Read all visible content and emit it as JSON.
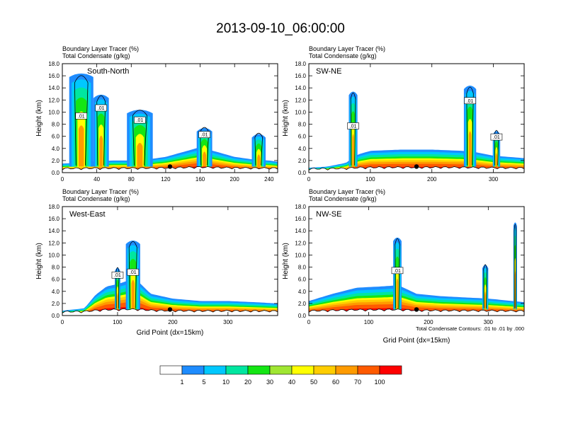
{
  "figure": {
    "title": "2013-09-10_06:00:00",
    "colorbar": {
      "ticks": [
        "1",
        "5",
        "10",
        "20",
        "30",
        "40",
        "50",
        "60",
        "70",
        "100"
      ],
      "colors": [
        "#ffffff",
        "#1e8cff",
        "#00c8ff",
        "#00e6a0",
        "#14e614",
        "#a0e632",
        "#ffff00",
        "#ffcd00",
        "#ff9b00",
        "#ff5a00",
        "#ff0000"
      ]
    }
  },
  "chart_data": [
    {
      "type": "heatmap",
      "panel": "South-North",
      "title_line1": "Boundary Layer Tracer   (%)",
      "title_line2": "Total Condensate   (g/kg)",
      "ylabel": "Height (km)",
      "xlabel": "",
      "xlim": [
        0,
        250
      ],
      "ylim": [
        0,
        18
      ],
      "xticks": [
        "0",
        "40",
        "80",
        "120",
        "160",
        "200",
        "240"
      ],
      "yticks": [
        "0.0",
        "2.0",
        "4.0",
        "6.0",
        "8.0",
        "10.0",
        "12.0",
        "14.0",
        "16.0",
        "18.0"
      ],
      "contour_labels": [
        ".01",
        ".01",
        ".01",
        ".01"
      ],
      "boundary_layer_top_km": [
        [
          0,
          1.5
        ],
        [
          20,
          1.6
        ],
        [
          40,
          1.9
        ],
        [
          60,
          2.0
        ],
        [
          80,
          2.0
        ],
        [
          100,
          2.2
        ],
        [
          120,
          2.6
        ],
        [
          140,
          3.4
        ],
        [
          160,
          4.2
        ],
        [
          180,
          3.4
        ],
        [
          200,
          2.6
        ],
        [
          220,
          2.2
        ],
        [
          240,
          2.0
        ],
        [
          250,
          1.8
        ]
      ],
      "tracer_plumes": [
        {
          "x": 22,
          "top_km": 16.5,
          "width": 28
        },
        {
          "x": 45,
          "top_km": 13.0,
          "width": 18
        },
        {
          "x": 90,
          "top_km": 10.5,
          "width": 30
        },
        {
          "x": 165,
          "top_km": 7.5,
          "width": 18
        },
        {
          "x": 228,
          "top_km": 6.5,
          "width": 16
        }
      ]
    },
    {
      "type": "heatmap",
      "panel": "SW-NE",
      "title_line1": "Boundary Layer Tracer   (%)",
      "title_line2": "Total Condensate   (g/kg)",
      "ylabel": "Height (km)",
      "xlabel": "",
      "xlim": [
        0,
        350
      ],
      "ylim": [
        0,
        18
      ],
      "xticks": [
        "0",
        "100",
        "200",
        "300"
      ],
      "yticks": [
        "0.0",
        "2.0",
        "4.0",
        "6.0",
        "8.0",
        "10.0",
        "12.0",
        "14.0",
        "16.0",
        "18.0"
      ],
      "contour_labels": [
        ".01",
        ".01",
        ".01"
      ],
      "boundary_layer_top_km": [
        [
          0,
          0.8
        ],
        [
          30,
          1.0
        ],
        [
          60,
          1.6
        ],
        [
          80,
          3.0
        ],
        [
          100,
          3.6
        ],
        [
          150,
          3.8
        ],
        [
          200,
          3.8
        ],
        [
          250,
          3.6
        ],
        [
          270,
          3.4
        ],
        [
          300,
          2.8
        ],
        [
          350,
          2.4
        ]
      ],
      "tracer_plumes": [
        {
          "x": 72,
          "top_km": 13.5,
          "width": 14
        },
        {
          "x": 262,
          "top_km": 14.5,
          "width": 20
        },
        {
          "x": 305,
          "top_km": 7.0,
          "width": 12
        }
      ]
    },
    {
      "type": "heatmap",
      "panel": "West-East",
      "title_line1": "Boundary Layer Tracer   (%)",
      "title_line2": "Total Condensate   (g/kg)",
      "ylabel": "Height (km)",
      "xlabel": "Grid Point (dx=15km)",
      "xlim": [
        0,
        390
      ],
      "ylim": [
        0,
        18
      ],
      "xticks": [
        "0",
        "100",
        "200",
        "300"
      ],
      "yticks": [
        "0.0",
        "2.0",
        "4.0",
        "6.0",
        "8.0",
        "10.0",
        "12.0",
        "14.0",
        "16.0",
        "18.0"
      ],
      "contour_labels": [
        ".01",
        ".01"
      ],
      "boundary_layer_top_km": [
        [
          0,
          0.8
        ],
        [
          40,
          1.2
        ],
        [
          60,
          3.4
        ],
        [
          80,
          4.8
        ],
        [
          100,
          5.2
        ],
        [
          120,
          5.8
        ],
        [
          140,
          5.4
        ],
        [
          160,
          3.6
        ],
        [
          200,
          2.8
        ],
        [
          250,
          2.4
        ],
        [
          300,
          2.4
        ],
        [
          350,
          2.2
        ],
        [
          390,
          2.0
        ]
      ],
      "tracer_plumes": [
        {
          "x": 128,
          "top_km": 12.5,
          "width": 26
        },
        {
          "x": 100,
          "top_km": 8.0,
          "width": 10
        }
      ]
    },
    {
      "type": "heatmap",
      "panel": "NW-SE",
      "title_line1": "Boundary Layer Tracer   (%)",
      "title_line2": "Total Condensate   (g/kg)",
      "ylabel": "Height (km)",
      "xlabel": "Grid Point (dx=15km)",
      "note": "Total Condensate Contours: .01 to .01 by .000",
      "xlim": [
        0,
        360
      ],
      "ylim": [
        0,
        18
      ],
      "xticks": [
        "0",
        "100",
        "200",
        "300"
      ],
      "yticks": [
        "0.0",
        "2.0",
        "4.0",
        "6.0",
        "8.0",
        "10.0",
        "12.0",
        "14.0",
        "16.0",
        "18.0"
      ],
      "contour_labels": [
        ".01"
      ],
      "boundary_layer_top_km": [
        [
          0,
          2.4
        ],
        [
          40,
          3.6
        ],
        [
          80,
          4.6
        ],
        [
          120,
          4.8
        ],
        [
          150,
          5.0
        ],
        [
          180,
          3.6
        ],
        [
          220,
          3.2
        ],
        [
          260,
          3.0
        ],
        [
          300,
          2.8
        ],
        [
          340,
          2.4
        ],
        [
          360,
          2.2
        ]
      ],
      "tracer_plumes": [
        {
          "x": 148,
          "top_km": 13.0,
          "width": 14
        },
        {
          "x": 295,
          "top_km": 8.5,
          "width": 10
        },
        {
          "x": 345,
          "top_km": 15.5,
          "width": 6
        }
      ]
    }
  ]
}
